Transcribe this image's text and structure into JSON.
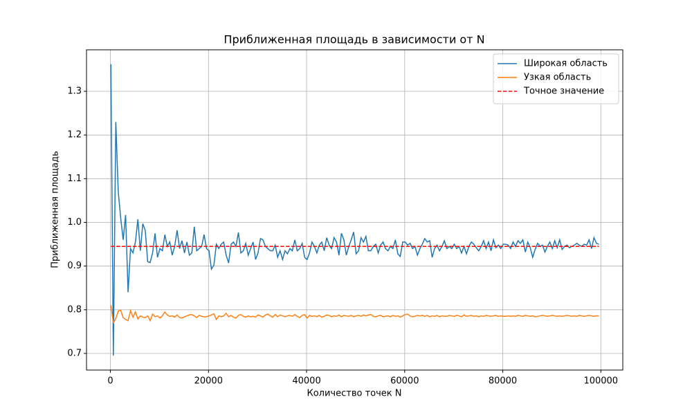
{
  "chart_data": {
    "type": "line",
    "title": "Приближенная площадь в зависимости от N",
    "x_label": "Количество точек N",
    "y_label": "Приближенная площадь",
    "xlim": [
      -4875,
      104475
    ],
    "ylim": [
      0.662,
      1.395
    ],
    "xticks": [
      0,
      20000,
      40000,
      60000,
      80000,
      100000
    ],
    "yticks": [
      0.7,
      0.8,
      0.9,
      {
        "value": 1,
        "label": "1.0"
      },
      1.1,
      1.2,
      1.3
    ],
    "grid": true,
    "legend": "upper right",
    "x": [
      100,
      600,
      1100,
      1600,
      2100,
      2600,
      3100,
      3600,
      4100,
      4600,
      5100,
      5600,
      6100,
      6600,
      7100,
      7600,
      8100,
      8600,
      9100,
      9600,
      10100,
      10600,
      11100,
      11600,
      12100,
      12600,
      13100,
      13600,
      14100,
      14600,
      15100,
      15600,
      16100,
      16600,
      17100,
      17600,
      18100,
      18600,
      19100,
      19600,
      20100,
      20600,
      21100,
      21600,
      22100,
      22600,
      23100,
      23600,
      24100,
      24600,
      25100,
      25600,
      26100,
      26600,
      27100,
      27600,
      28100,
      28600,
      29100,
      29600,
      30100,
      30600,
      31100,
      31600,
      32100,
      32600,
      33100,
      33600,
      34100,
      34600,
      35100,
      35600,
      36100,
      36600,
      37100,
      37600,
      38100,
      38600,
      39100,
      39600,
      40100,
      40600,
      41100,
      41600,
      42100,
      42600,
      43100,
      43600,
      44100,
      44600,
      45100,
      45600,
      46100,
      46600,
      47100,
      47600,
      48100,
      48600,
      49100,
      49600,
      50100,
      50600,
      51100,
      51600,
      52100,
      52600,
      53100,
      53600,
      54100,
      54600,
      55100,
      55600,
      56100,
      56600,
      57100,
      57600,
      58100,
      58600,
      59100,
      59600,
      60100,
      60600,
      61100,
      61600,
      62100,
      62600,
      63100,
      63600,
      64100,
      64600,
      65100,
      65600,
      66100,
      66600,
      67100,
      67600,
      68100,
      68600,
      69100,
      69600,
      70100,
      70600,
      71100,
      71600,
      72100,
      72600,
      73100,
      73600,
      74100,
      74600,
      75100,
      75600,
      76100,
      76600,
      77100,
      77600,
      78100,
      78600,
      79100,
      79600,
      80100,
      80600,
      81100,
      81600,
      82100,
      82600,
      83100,
      83600,
      84100,
      84600,
      85100,
      85600,
      86100,
      86600,
      87100,
      87600,
      88100,
      88600,
      89100,
      89600,
      90100,
      90600,
      91100,
      91600,
      92100,
      92600,
      93100,
      93600,
      94100,
      94600,
      95100,
      95600,
      96100,
      96600,
      97100,
      97600,
      98100,
      98600,
      99100,
      99600
    ],
    "series": [
      {
        "name": "Широкая область",
        "color": "#1f77b4",
        "values": [
          1.362,
          0.695,
          1.23,
          1.07,
          1.01,
          0.96,
          1.017,
          0.84,
          0.94,
          0.93,
          0.955,
          1.007,
          0.935,
          0.997,
          0.982,
          0.91,
          0.908,
          0.93,
          0.975,
          0.92,
          0.94,
          0.935,
          0.972,
          0.945,
          0.955,
          0.925,
          0.945,
          0.982,
          0.94,
          0.958,
          0.93,
          0.955,
          0.925,
          0.93,
          0.99,
          0.935,
          0.94,
          0.945,
          0.972,
          0.94,
          0.935,
          0.893,
          0.902,
          0.95,
          0.94,
          0.95,
          0.955,
          0.925,
          0.907,
          0.95,
          0.955,
          0.945,
          0.977,
          0.93,
          0.935,
          0.952,
          0.925,
          0.94,
          0.955,
          0.915,
          0.93,
          0.963,
          0.96,
          0.945,
          0.94,
          0.935,
          0.935,
          0.948,
          0.92,
          0.935,
          0.915,
          0.935,
          0.928,
          0.94,
          0.935,
          0.96,
          0.935,
          0.94,
          0.952,
          0.92,
          0.915,
          0.93,
          0.955,
          0.945,
          0.93,
          0.948,
          0.955,
          0.935,
          0.965,
          0.948,
          0.94,
          0.965,
          0.955,
          0.925,
          0.975,
          0.96,
          0.925,
          0.945,
          0.96,
          0.978,
          0.928,
          0.935,
          0.965,
          0.955,
          0.968,
          0.935,
          0.935,
          0.945,
          0.95,
          0.93,
          0.948,
          0.955,
          0.94,
          0.935,
          0.945,
          0.94,
          0.96,
          0.928,
          0.922,
          0.955,
          0.955,
          0.948,
          0.952,
          0.94,
          0.945,
          0.925,
          0.94,
          0.95,
          0.963,
          0.955,
          0.958,
          0.92,
          0.94,
          0.948,
          0.935,
          0.945,
          0.958,
          0.94,
          0.945,
          0.94,
          0.95,
          0.94,
          0.945,
          0.93,
          0.945,
          0.928,
          0.945,
          0.955,
          0.95,
          0.942,
          0.935,
          0.945,
          0.958,
          0.94,
          0.955,
          0.935,
          0.96,
          0.942,
          0.948,
          0.94,
          0.95,
          0.95,
          0.948,
          0.94,
          0.955,
          0.945,
          0.958,
          0.952,
          0.96,
          0.932,
          0.955,
          0.942,
          0.92,
          0.938,
          0.952,
          0.945,
          0.948,
          0.932,
          0.945,
          0.955,
          0.94,
          0.958,
          0.942,
          0.96,
          0.938,
          0.945,
          0.948,
          0.942,
          0.945,
          0.948,
          0.952,
          0.948,
          0.945,
          0.95,
          0.948,
          0.96,
          0.94,
          0.965,
          0.952,
          0.95
        ]
      },
      {
        "name": "Узкая область",
        "color": "#ff7f0e",
        "values": [
          0.81,
          0.77,
          0.78,
          0.797,
          0.799,
          0.782,
          0.778,
          0.775,
          0.798,
          0.783,
          0.795,
          0.779,
          0.786,
          0.783,
          0.782,
          0.786,
          0.775,
          0.79,
          0.784,
          0.786,
          0.781,
          0.786,
          0.795,
          0.788,
          0.785,
          0.786,
          0.783,
          0.788,
          0.782,
          0.781,
          0.784,
          0.786,
          0.788,
          0.789,
          0.786,
          0.782,
          0.787,
          0.785,
          0.784,
          0.784,
          0.786,
          0.788,
          0.791,
          0.778,
          0.786,
          0.784,
          0.786,
          0.792,
          0.784,
          0.787,
          0.783,
          0.781,
          0.787,
          0.789,
          0.785,
          0.783,
          0.786,
          0.784,
          0.785,
          0.783,
          0.788,
          0.786,
          0.783,
          0.788,
          0.79,
          0.786,
          0.783,
          0.789,
          0.784,
          0.788,
          0.786,
          0.784,
          0.786,
          0.787,
          0.785,
          0.789,
          0.785,
          0.782,
          0.787,
          0.789,
          0.781,
          0.787,
          0.785,
          0.786,
          0.784,
          0.787,
          0.783,
          0.785,
          0.788,
          0.787,
          0.784,
          0.786,
          0.785,
          0.788,
          0.784,
          0.787,
          0.786,
          0.785,
          0.787,
          0.784,
          0.786,
          0.787,
          0.785,
          0.788,
          0.786,
          0.788,
          0.789,
          0.785,
          0.784,
          0.786,
          0.787,
          0.784,
          0.785,
          0.786,
          0.784,
          0.787,
          0.785,
          0.786,
          0.783,
          0.786,
          0.789,
          0.79,
          0.786,
          0.784,
          0.785,
          0.787,
          0.786,
          0.787,
          0.785,
          0.787,
          0.784,
          0.786,
          0.785,
          0.787,
          0.784,
          0.786,
          0.785,
          0.785,
          0.787,
          0.786,
          0.785,
          0.787,
          0.786,
          0.784,
          0.788,
          0.785,
          0.786,
          0.787,
          0.785,
          0.786,
          0.784,
          0.786,
          0.785,
          0.787,
          0.786,
          0.785,
          0.786,
          0.787,
          0.785,
          0.786,
          0.785,
          0.785,
          0.786,
          0.785,
          0.786,
          0.785,
          0.787,
          0.786,
          0.785,
          0.787,
          0.786,
          0.785,
          0.786,
          0.784,
          0.785,
          0.786,
          0.787,
          0.786,
          0.785,
          0.786,
          0.787,
          0.786,
          0.785,
          0.786,
          0.785,
          0.786,
          0.787,
          0.786,
          0.785,
          0.786,
          0.785,
          0.787,
          0.786,
          0.785,
          0.786,
          0.787,
          0.786,
          0.785,
          0.786,
          0.786
        ]
      }
    ],
    "reference_line": {
      "name": "Точное значение",
      "color": "#ff0000",
      "value": 0.945
    }
  }
}
